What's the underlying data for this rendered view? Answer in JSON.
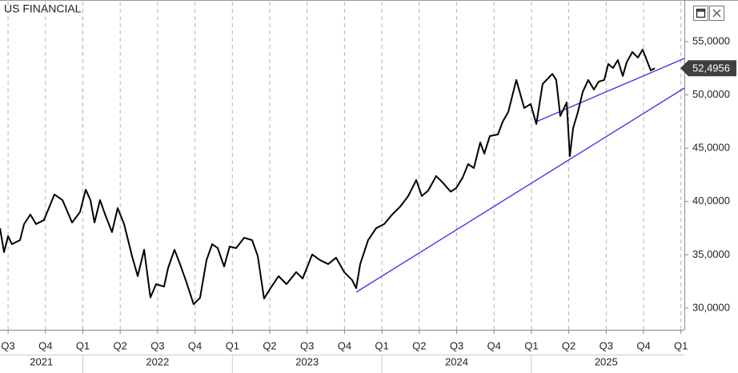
{
  "chart_data": {
    "type": "line",
    "title": "US FINANCIAL",
    "color": "#000000",
    "x": [
      2021.446,
      2021.473,
      2021.5,
      2021.526,
      2021.58,
      2021.607,
      2021.649,
      2021.687,
      2021.74,
      2021.81,
      2021.864,
      2021.928,
      2021.981,
      2022.019,
      2022.051,
      2022.078,
      2022.115,
      2022.153,
      2022.195,
      2022.233,
      2022.276,
      2022.329,
      2022.367,
      2022.41,
      2022.452,
      2022.49,
      2022.543,
      2022.57,
      2022.613,
      2022.65,
      2022.688,
      2022.741,
      2022.784,
      2022.827,
      2022.865,
      2022.902,
      2022.945,
      2022.982,
      2023.025,
      2023.079,
      2023.132,
      2023.17,
      2023.212,
      2023.255,
      2023.309,
      2023.362,
      2023.427,
      2023.47,
      2023.534,
      2023.587,
      2023.641,
      2023.694,
      2023.748,
      2023.801,
      2023.828,
      2023.855,
      2023.908,
      2023.962,
      2024.015,
      2024.069,
      2024.123,
      2024.176,
      2024.23,
      2024.267,
      2024.31,
      2024.363,
      2024.406,
      2024.46,
      2024.497,
      2024.54,
      2024.577,
      2024.615,
      2024.658,
      2024.685,
      2024.722,
      2024.776,
      2024.808,
      2024.845,
      2024.899,
      2024.952,
      2024.995,
      2025.033,
      2025.075,
      2025.14,
      2025.166,
      2025.193,
      2025.236,
      2025.257,
      2025.279,
      2025.311,
      2025.343,
      2025.38,
      2025.418,
      2025.45,
      2025.487,
      2025.514,
      2025.546,
      2025.578,
      2025.611,
      2025.637,
      2025.675,
      2025.712,
      2025.744,
      2025.771,
      2025.798,
      2025.825
    ],
    "values": [
      37.5,
      35.25,
      36.75,
      36.0,
      36.38,
      37.88,
      38.78,
      37.88,
      38.26,
      40.66,
      40.13,
      38.03,
      39.01,
      41.11,
      40.13,
      38.03,
      40.13,
      38.63,
      37.13,
      39.38,
      37.88,
      34.88,
      33.0,
      35.48,
      31.0,
      32.25,
      32.02,
      33.75,
      35.48,
      34.13,
      32.63,
      30.37,
      30.97,
      34.5,
      36.0,
      35.63,
      33.9,
      35.78,
      35.63,
      36.6,
      36.38,
      34.88,
      30.9,
      31.87,
      33.0,
      32.25,
      33.38,
      32.78,
      35.03,
      34.5,
      34.13,
      34.73,
      33.38,
      32.63,
      31.87,
      34.13,
      36.38,
      37.5,
      37.88,
      38.78,
      39.53,
      40.51,
      42.01,
      40.51,
      41.03,
      42.39,
      41.79,
      40.92,
      41.26,
      42.24,
      43.51,
      43.14,
      45.54,
      44.49,
      46.14,
      46.29,
      47.49,
      48.39,
      51.4,
      48.77,
      49.14,
      47.27,
      51.02,
      51.97,
      51.4,
      48.02,
      49.29,
      44.26,
      46.89,
      48.39,
      50.27,
      51.4,
      50.5,
      51.25,
      51.4,
      52.9,
      52.52,
      53.27,
      51.77,
      53.05,
      54.02,
      53.5,
      54.25,
      53.27,
      52.3,
      52.4956
    ],
    "trendlines": [
      {
        "color": "#3c3ce0",
        "x": [
          2023.828,
          2026.023
        ],
        "values": [
          31.5,
          50.64
        ]
      },
      {
        "color": "#3c3ce0",
        "x": [
          2025.033,
          2026.023
        ],
        "values": [
          47.49,
          53.42
        ]
      }
    ],
    "last_price": {
      "value": 52.4956,
      "label": "52,4956"
    },
    "xlim": [
      2021.446,
      2026.023
    ],
    "xticks": [
      {
        "value": 2021.5,
        "label": "Q3"
      },
      {
        "value": 2021.75,
        "label": "Q4"
      },
      {
        "value": 2022.0,
        "label": "Q1"
      },
      {
        "value": 2022.25,
        "label": "Q2"
      },
      {
        "value": 2022.5,
        "label": "Q3"
      },
      {
        "value": 2022.75,
        "label": "Q4"
      },
      {
        "value": 2023.0,
        "label": "Q1"
      },
      {
        "value": 2023.25,
        "label": "Q2"
      },
      {
        "value": 2023.5,
        "label": "Q3"
      },
      {
        "value": 2023.75,
        "label": "Q4"
      },
      {
        "value": 2024.0,
        "label": "Q1"
      },
      {
        "value": 2024.25,
        "label": "Q2"
      },
      {
        "value": 2024.5,
        "label": "Q3"
      },
      {
        "value": 2024.75,
        "label": "Q4"
      },
      {
        "value": 2025.0,
        "label": "Q1"
      },
      {
        "value": 2025.25,
        "label": "Q2"
      },
      {
        "value": 2025.5,
        "label": "Q3"
      },
      {
        "value": 2025.75,
        "label": "Q4"
      },
      {
        "value": 2026.0,
        "label": "Q1"
      }
    ],
    "years": [
      2021,
      2022,
      2023,
      2024,
      2025
    ],
    "ylim": [
      27.97,
      58.9
    ],
    "yticks": [
      {
        "value": 30,
        "label": "30,0000"
      },
      {
        "value": 35,
        "label": "35,0000"
      },
      {
        "value": 40,
        "label": "40,0000"
      },
      {
        "value": 45,
        "label": "45,0000"
      },
      {
        "value": 50,
        "label": "50,0000"
      },
      {
        "value": 55,
        "label": "55,0000"
      }
    ],
    "grid": true
  }
}
